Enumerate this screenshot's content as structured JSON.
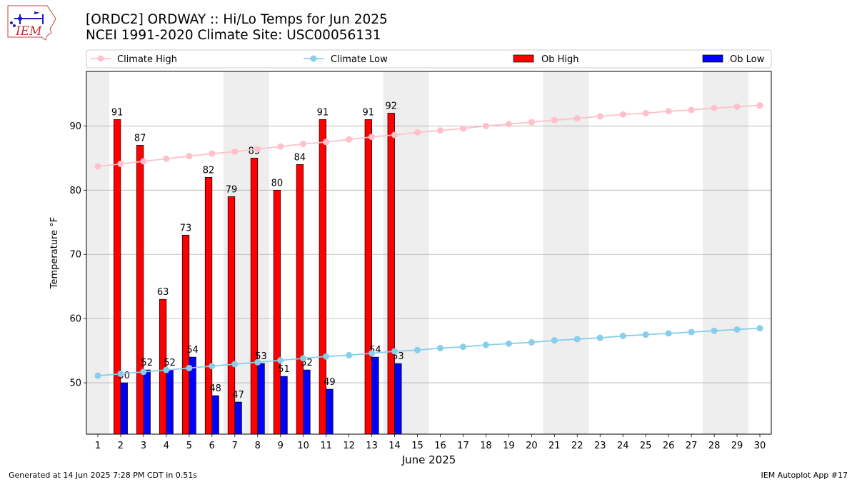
{
  "header": {
    "title_line1": "[ORDC2] ORDWAY :: Hi/Lo Temps for Jun 2025",
    "title_line2": "NCEI 1991-2020 Climate Site: USC00056131"
  },
  "logo": {
    "text": "IEM"
  },
  "footer": {
    "left": "Generated at 14 Jun 2025 7:28 PM CDT in 0.51s",
    "right": "IEM Autoplot App #17"
  },
  "colors": {
    "ob_high": "#ff0000",
    "ob_low": "#0000ff",
    "climate_high": "#ffc0cb",
    "climate_low": "#87ceeb",
    "weekend_shade": "#eeeeee",
    "grid": "#b0b0b0"
  },
  "chart_data": {
    "type": "bar",
    "xlabel": "June 2025",
    "ylabel": "Temperature °F",
    "xlim": [
      0.5,
      30.5
    ],
    "ylim": [
      42,
      98.5
    ],
    "yticks": [
      50,
      60,
      70,
      80,
      90
    ],
    "grid": "horizontal",
    "legend_placement": "top",
    "x": [
      1,
      2,
      3,
      4,
      5,
      6,
      7,
      8,
      9,
      10,
      11,
      12,
      13,
      14,
      15,
      16,
      17,
      18,
      19,
      20,
      21,
      22,
      23,
      24,
      25,
      26,
      27,
      28,
      29,
      30
    ],
    "weekend_spans": [
      [
        0.5,
        1.5
      ],
      [
        6.5,
        8.5
      ],
      [
        13.5,
        15.5
      ],
      [
        20.5,
        22.5
      ],
      [
        27.5,
        29.5
      ]
    ],
    "series": [
      {
        "name": "Climate High",
        "kind": "line",
        "values": [
          83.7,
          84.1,
          84.5,
          84.9,
          85.3,
          85.7,
          86.0,
          86.4,
          86.8,
          87.2,
          87.5,
          87.9,
          88.3,
          88.6,
          89.0,
          89.3,
          89.6,
          90.0,
          90.3,
          90.6,
          90.9,
          91.2,
          91.5,
          91.8,
          92.0,
          92.3,
          92.5,
          92.8,
          93.0,
          93.2
        ]
      },
      {
        "name": "Climate Low",
        "kind": "line",
        "values": [
          51.1,
          51.4,
          51.7,
          52.0,
          52.3,
          52.6,
          52.9,
          53.2,
          53.5,
          53.8,
          54.1,
          54.3,
          54.6,
          54.9,
          55.1,
          55.4,
          55.6,
          55.9,
          56.1,
          56.3,
          56.6,
          56.8,
          57.0,
          57.3,
          57.5,
          57.7,
          57.9,
          58.1,
          58.3,
          58.5
        ]
      },
      {
        "name": "Ob High",
        "kind": "bar",
        "values": [
          null,
          91,
          87,
          63,
          73,
          82,
          79,
          85,
          80,
          84,
          91,
          null,
          91,
          92,
          null,
          null,
          null,
          null,
          null,
          null,
          null,
          null,
          null,
          null,
          null,
          null,
          null,
          null,
          null,
          null
        ]
      },
      {
        "name": "Ob Low",
        "kind": "bar",
        "values": [
          null,
          50,
          52,
          52,
          54,
          48,
          47,
          53,
          51,
          52,
          49,
          null,
          54,
          53,
          null,
          null,
          null,
          null,
          null,
          null,
          null,
          null,
          null,
          null,
          null,
          null,
          null,
          null,
          null,
          null
        ]
      }
    ]
  }
}
